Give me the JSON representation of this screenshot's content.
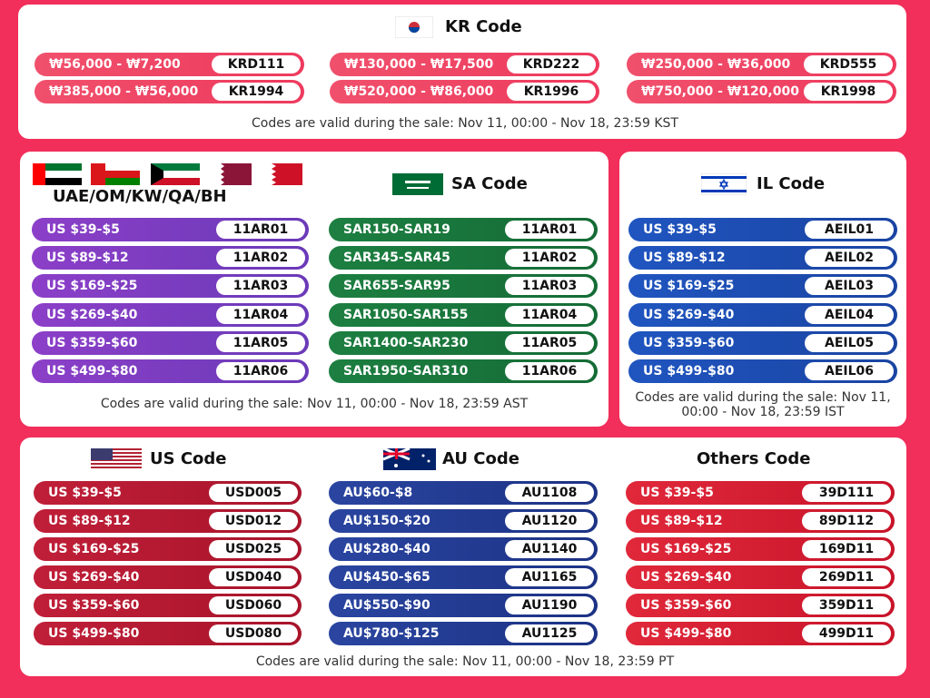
{
  "panels": [
    {
      "note": "Codes are valid during the sale: Nov 11, 00:00 - Nov 18, 23:59 KST",
      "sections": [
        {
          "title": "KR Code",
          "rows": [
            {
              "range": "₩56,000 - ₩7,200",
              "code": "KRD111"
            },
            {
              "range": "₩130,000 - ₩17,500",
              "code": "KRD222"
            },
            {
              "range": "₩250,000 - ₩36,000",
              "code": "KRD555"
            },
            {
              "range": "₩385,000 - ₩56,000",
              "code": "KR1994"
            },
            {
              "range": "₩520,000 - ₩86,000",
              "code": "KR1996"
            },
            {
              "range": "₩750,000 - ₩120,000",
              "code": "KR1998"
            }
          ]
        }
      ]
    },
    {
      "note": "Codes are valid during the sale: Nov 11, 00:00 - Nov 18, 23:59 AST",
      "sections": [
        {
          "title": "UAE/OM/KW/QA/BH",
          "rows": [
            {
              "range": "US $39-$5",
              "code": "11AR01"
            },
            {
              "range": "US $89-$12",
              "code": "11AR02"
            },
            {
              "range": "US $169-$25",
              "code": "11AR03"
            },
            {
              "range": "US $269-$40",
              "code": "11AR04"
            },
            {
              "range": "US $359-$60",
              "code": "11AR05"
            },
            {
              "range": "US $499-$80",
              "code": "11AR06"
            }
          ]
        },
        {
          "title": "SA Code",
          "rows": [
            {
              "range": "SAR150-SAR19",
              "code": "11AR01"
            },
            {
              "range": "SAR345-SAR45",
              "code": "11AR02"
            },
            {
              "range": "SAR655-SAR95",
              "code": "11AR03"
            },
            {
              "range": "SAR1050-SAR155",
              "code": "11AR04"
            },
            {
              "range": "SAR1400-SAR230",
              "code": "11AR05"
            },
            {
              "range": "SAR1950-SAR310",
              "code": "11AR06"
            }
          ]
        }
      ]
    },
    {
      "note": "Codes are valid during the sale: Nov 11, 00:00 - Nov 18, 23:59 IST",
      "sections": [
        {
          "title": "IL Code",
          "rows": [
            {
              "range": "US $39-$5",
              "code": "AEIL01"
            },
            {
              "range": "US $89-$12",
              "code": "AEIL02"
            },
            {
              "range": "US $169-$25",
              "code": "AEIL03"
            },
            {
              "range": "US $269-$40",
              "code": "AEIL04"
            },
            {
              "range": "US $359-$60",
              "code": "AEIL05"
            },
            {
              "range": "US $499-$80",
              "code": "AEIL06"
            }
          ]
        }
      ]
    },
    {
      "note": "Codes are valid during the sale: Nov 11, 00:00 - Nov 18, 23:59 PT",
      "sections": [
        {
          "title": "US Code",
          "rows": [
            {
              "range": "US $39-$5",
              "code": "USD005"
            },
            {
              "range": "US $89-$12",
              "code": "USD012"
            },
            {
              "range": "US $169-$25",
              "code": "USD025"
            },
            {
              "range": "US $269-$40",
              "code": "USD040"
            },
            {
              "range": "US $359-$60",
              "code": "USD060"
            },
            {
              "range": "US $499-$80",
              "code": "USD080"
            }
          ]
        },
        {
          "title": "AU Code",
          "rows": [
            {
              "range": "AU$60-$8",
              "code": "AU1108"
            },
            {
              "range": "AU$150-$20",
              "code": "AU1120"
            },
            {
              "range": "AU$280-$40",
              "code": "AU1140"
            },
            {
              "range": "AU$450-$65",
              "code": "AU1165"
            },
            {
              "range": "AU$550-$90",
              "code": "AU1190"
            },
            {
              "range": "AU$780-$125",
              "code": "AU1125"
            }
          ]
        },
        {
          "title": "Others Code",
          "rows": [
            {
              "range": "US $39-$5",
              "code": "39D111"
            },
            {
              "range": "US $89-$12",
              "code": "89D112"
            },
            {
              "range": "US $169-$25",
              "code": "169D11"
            },
            {
              "range": "US $269-$40",
              "code": "269D11"
            },
            {
              "range": "US $359-$60",
              "code": "359D11"
            },
            {
              "range": "US $499-$80",
              "code": "499D11"
            }
          ]
        }
      ]
    }
  ]
}
